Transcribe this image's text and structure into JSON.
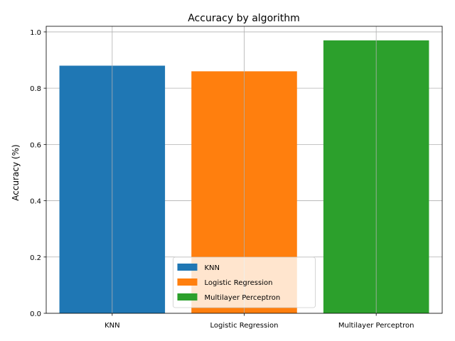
{
  "chart_data": {
    "type": "bar",
    "title": "Accuracy by algorithm",
    "xlabel": "",
    "ylabel": "Accuracy (%)",
    "categories": [
      "KNN",
      "Logistic Regression",
      "Multilayer Perceptron"
    ],
    "series": [
      {
        "name": "KNN",
        "category": "KNN",
        "value": 0.88,
        "color": "#1f77b4"
      },
      {
        "name": "Logistic Regression",
        "category": "Logistic Regression",
        "value": 0.86,
        "color": "#ff7f0e"
      },
      {
        "name": "Multilayer Perceptron",
        "category": "Multilayer Perceptron",
        "value": 0.97,
        "color": "#2ca02c"
      }
    ],
    "ylim": [
      0,
      1.02
    ],
    "yticks": [
      "0.0",
      "0.2",
      "0.4",
      "0.6",
      "0.8",
      "1.0"
    ],
    "grid": true,
    "legend_position": "lower center"
  }
}
